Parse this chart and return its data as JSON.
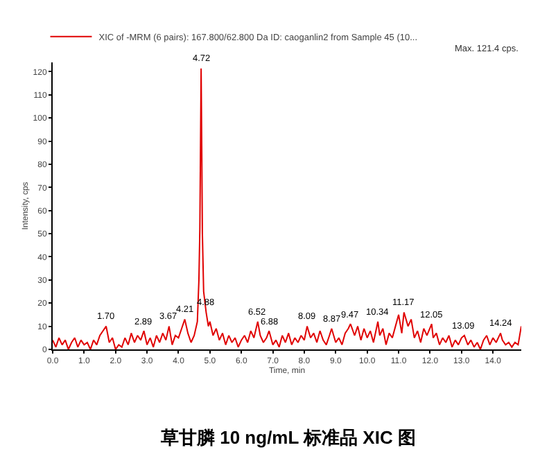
{
  "chart_data": {
    "type": "line",
    "xlabel": "Time, min",
    "ylabel": "Intensity, cps",
    "legend": "top left",
    "xlim": [
      0,
      14.9
    ],
    "xticks": [
      {
        "value": 0,
        "label": "0.0"
      },
      {
        "value": 1,
        "label": "1.0"
      },
      {
        "value": 2,
        "label": "2.0"
      },
      {
        "value": 3,
        "label": "3.0"
      },
      {
        "value": 4,
        "label": "4.0"
      },
      {
        "value": 5,
        "label": "5.0"
      },
      {
        "value": 6,
        "label": "6.0"
      },
      {
        "value": 7,
        "label": "7.0"
      },
      {
        "value": 8,
        "label": "8.0"
      },
      {
        "value": 9,
        "label": "9.0"
      },
      {
        "value": 10,
        "label": "10.0"
      },
      {
        "value": 11,
        "label": "11.0"
      },
      {
        "value": 12,
        "label": "12.0"
      },
      {
        "value": 13,
        "label": "13.0"
      },
      {
        "value": 14,
        "label": "14.0"
      }
    ],
    "ylim": [
      0,
      124
    ],
    "yticks": [
      0,
      10,
      20,
      30,
      40,
      50,
      60,
      70,
      80,
      90,
      100,
      110,
      120
    ],
    "series": [
      {
        "name": "XIC of -MRM (6 pairs): 167.800/62.800 Da ID: caoganlin2 from Sample 45 (10...",
        "color": "#e00000",
        "x": [
          0.0,
          0.1,
          0.2,
          0.3,
          0.4,
          0.5,
          0.6,
          0.7,
          0.8,
          0.9,
          1.0,
          1.1,
          1.2,
          1.3,
          1.4,
          1.5,
          1.6,
          1.7,
          1.8,
          1.9,
          2.0,
          2.1,
          2.2,
          2.3,
          2.4,
          2.5,
          2.6,
          2.7,
          2.8,
          2.9,
          3.0,
          3.1,
          3.2,
          3.3,
          3.4,
          3.5,
          3.6,
          3.7,
          3.8,
          3.9,
          4.0,
          4.1,
          4.2,
          4.3,
          4.4,
          4.5,
          4.6,
          4.65,
          4.68,
          4.72,
          4.74,
          4.76,
          4.8,
          4.88,
          4.95,
          5.0,
          5.1,
          5.2,
          5.3,
          5.4,
          5.5,
          5.6,
          5.7,
          5.8,
          5.9,
          6.0,
          6.1,
          6.2,
          6.3,
          6.4,
          6.52,
          6.6,
          6.7,
          6.8,
          6.88,
          7.0,
          7.1,
          7.2,
          7.3,
          7.4,
          7.5,
          7.6,
          7.7,
          7.8,
          7.9,
          8.0,
          8.09,
          8.2,
          8.3,
          8.4,
          8.5,
          8.6,
          8.7,
          8.8,
          8.87,
          9.0,
          9.1,
          9.2,
          9.3,
          9.4,
          9.47,
          9.6,
          9.7,
          9.8,
          9.9,
          10.0,
          10.1,
          10.2,
          10.34,
          10.4,
          10.5,
          10.6,
          10.7,
          10.8,
          10.9,
          11.0,
          11.1,
          11.17,
          11.3,
          11.4,
          11.5,
          11.6,
          11.7,
          11.8,
          11.9,
          12.05,
          12.1,
          12.2,
          12.3,
          12.4,
          12.5,
          12.6,
          12.7,
          12.8,
          12.9,
          13.0,
          13.09,
          13.2,
          13.3,
          13.4,
          13.5,
          13.6,
          13.7,
          13.8,
          13.9,
          14.0,
          14.1,
          14.24,
          14.3,
          14.4,
          14.5,
          14.6,
          14.7,
          14.8,
          14.9
        ],
        "values": [
          4,
          1,
          5,
          2,
          4,
          0,
          3,
          5,
          1,
          4,
          2,
          3,
          0,
          4,
          2,
          6,
          8,
          10,
          3,
          5,
          0,
          2,
          1,
          5,
          2,
          7,
          3,
          6,
          4,
          8,
          2,
          5,
          1,
          6,
          3,
          7,
          4,
          10,
          2,
          6,
          5,
          9,
          13,
          7,
          3,
          6,
          12,
          30,
          52,
          121.4,
          88,
          50,
          25,
          16,
          10,
          12,
          6,
          9,
          4,
          7,
          2,
          6,
          3,
          5,
          1,
          4,
          6,
          3,
          8,
          5,
          12,
          6,
          3,
          5,
          8,
          2,
          4,
          1,
          6,
          3,
          7,
          2,
          5,
          3,
          6,
          4,
          10,
          5,
          7,
          3,
          8,
          4,
          2,
          6,
          9,
          3,
          5,
          2,
          7,
          9,
          11,
          6,
          10,
          4,
          9,
          5,
          8,
          3,
          12,
          6,
          9,
          2,
          7,
          5,
          10,
          15,
          7,
          16,
          10,
          13,
          5,
          8,
          3,
          9,
          6,
          11,
          5,
          7,
          2,
          5,
          3,
          6,
          1,
          4,
          2,
          5,
          6,
          2,
          4,
          1,
          3,
          0,
          4,
          6,
          2,
          5,
          3,
          7,
          4,
          2,
          3,
          1,
          3,
          2,
          10
        ]
      }
    ],
    "annotations": [
      "Max. 121.4 cps.",
      {
        "text": "1.70",
        "x": 1.7,
        "y": 10
      },
      {
        "text": "2.89",
        "x": 2.89,
        "y": 8
      },
      {
        "text": "3.67",
        "x": 3.67,
        "y": 10
      },
      {
        "text": "4.21",
        "x": 4.21,
        "y": 13
      },
      {
        "text": "4.72",
        "x": 4.72,
        "y": 121.4
      },
      {
        "text": "4.88",
        "x": 4.88,
        "y": 16
      },
      {
        "text": "6.52",
        "x": 6.52,
        "y": 12
      },
      {
        "text": "6.88",
        "x": 6.88,
        "y": 8
      },
      {
        "text": "8.09",
        "x": 8.09,
        "y": 10
      },
      {
        "text": "8.87",
        "x": 8.87,
        "y": 9
      },
      {
        "text": "9.47",
        "x": 9.47,
        "y": 11
      },
      {
        "text": "10.34",
        "x": 10.34,
        "y": 12
      },
      {
        "text": "11.17",
        "x": 11.17,
        "y": 16
      },
      {
        "text": "12.05",
        "x": 12.05,
        "y": 11
      },
      {
        "text": "13.09",
        "x": 13.09,
        "y": 6
      },
      {
        "text": "14.24",
        "x": 14.24,
        "y": 7
      },
      "草甘膦 10 ng/mL 标准品 XIC 图"
    ]
  }
}
